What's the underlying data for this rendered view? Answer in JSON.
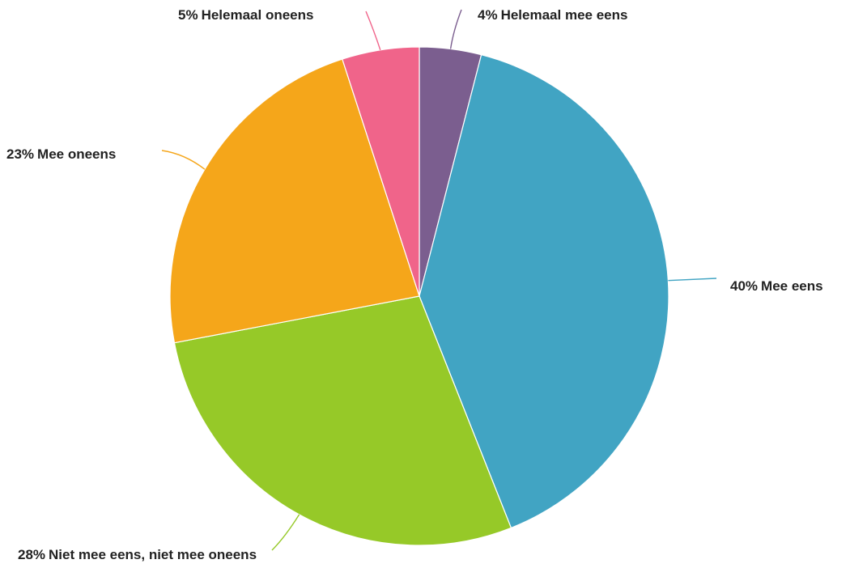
{
  "chart_data": {
    "type": "pie",
    "title": "",
    "slices": [
      {
        "label": "Mee eens",
        "value": 40,
        "percent_label": "40%",
        "color": "#41a4c3"
      },
      {
        "label": "Niet mee eens, niet mee oneens",
        "value": 28,
        "percent_label": "28%",
        "color": "#96c928"
      },
      {
        "label": "Mee oneens",
        "value": 23,
        "percent_label": "23%",
        "color": "#f5a61a"
      },
      {
        "label": "Helemaal oneens",
        "value": 5,
        "percent_label": "5%",
        "color": "#f0648a"
      },
      {
        "label": "Helemaal mee eens",
        "value": 4,
        "percent_label": "4%",
        "color": "#7b5e8f"
      }
    ],
    "start_angle_deg": 0,
    "direction": "counterclockwise",
    "legend": "none",
    "label_placement": "outside with leader lines"
  }
}
